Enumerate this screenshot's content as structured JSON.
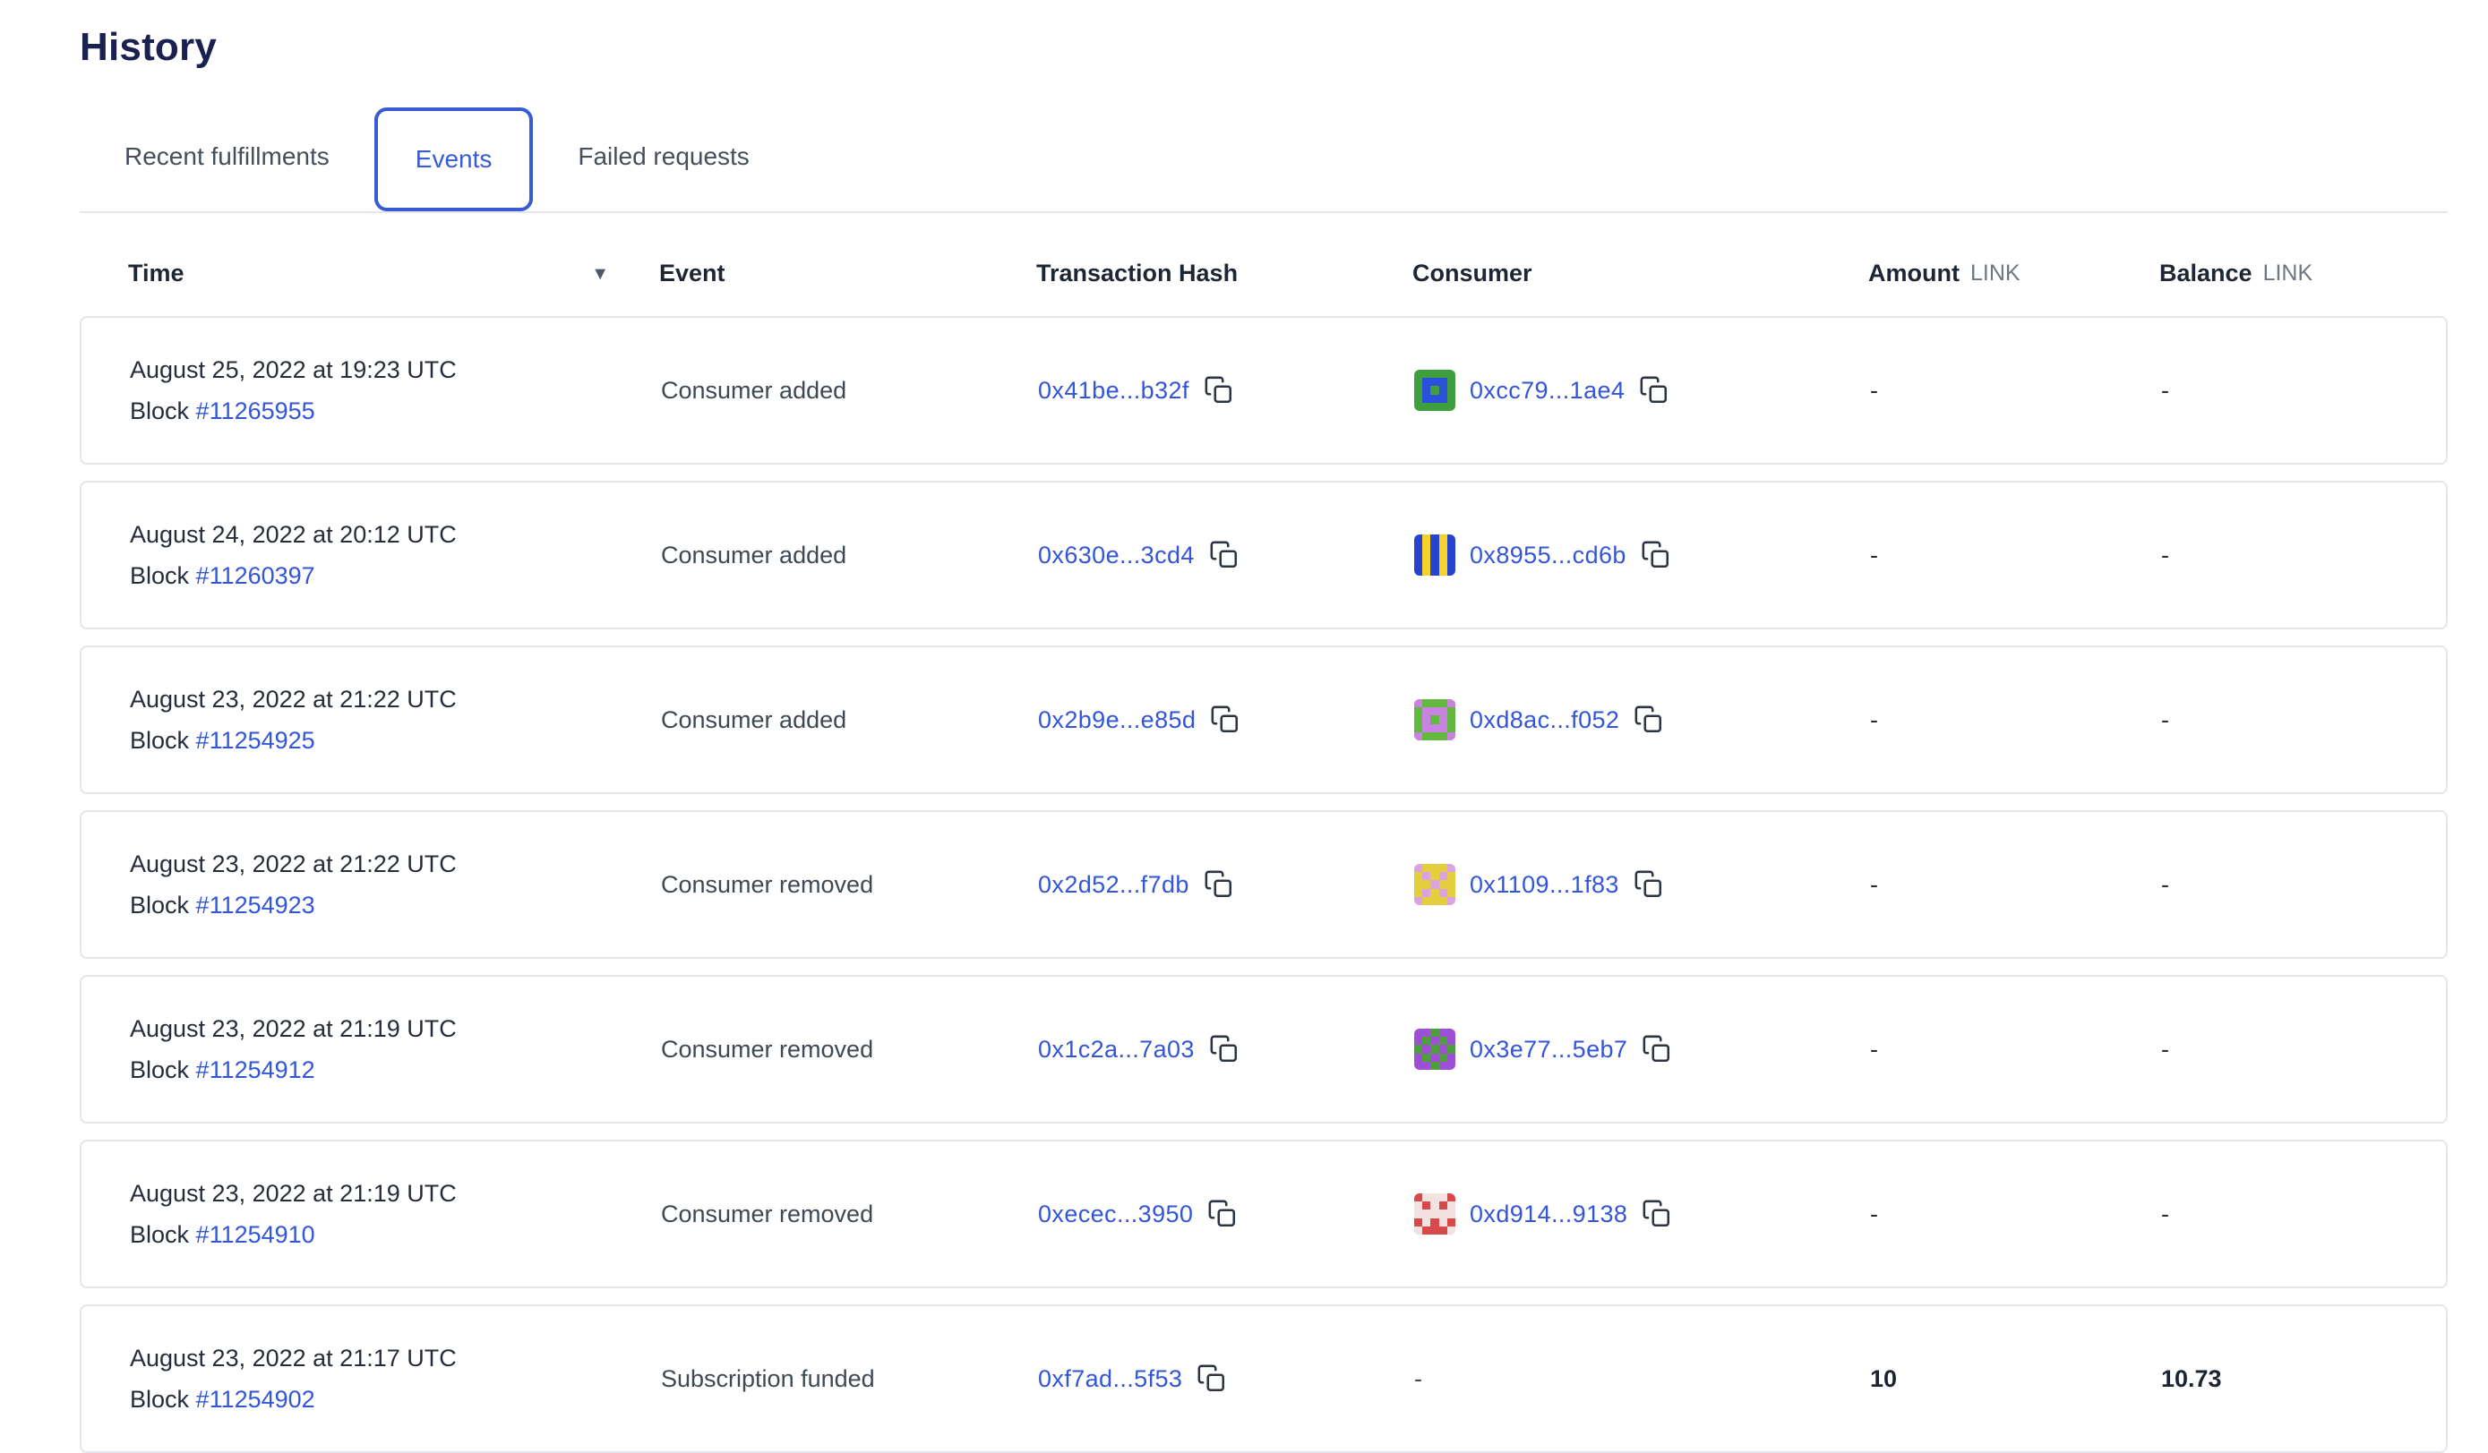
{
  "page": {
    "title": "History"
  },
  "colors": {
    "accent_blue": "#375bd2",
    "link_blue": "#3355d9",
    "heading_navy": "#1a2150",
    "row_border": "#e3e6eb"
  },
  "icons": {
    "sort_desc": "▼",
    "copy": "copy"
  },
  "tabs": [
    {
      "label": "Recent fulfillments",
      "active": false
    },
    {
      "label": "Events",
      "active": true
    },
    {
      "label": "Failed requests",
      "active": false
    }
  ],
  "table": {
    "headers": {
      "time": "Time",
      "event": "Event",
      "tx": "Transaction Hash",
      "consumer": "Consumer",
      "amount": "Amount",
      "amount_unit": "LINK",
      "balance": "Balance",
      "balance_unit": "LINK"
    },
    "rows": [
      {
        "date": "August 25, 2022 at 19:23 UTC",
        "block_label": "Block",
        "block_number": "#11265955",
        "event": "Consumer added",
        "tx_hash": "0x41be...b32f",
        "consumer": {
          "hash": "0xcc79...1ae4",
          "avatar": {
            "bg": "#3f9f3f",
            "fg": "#2b51d8",
            "pixels": [
              "00000",
              "01110",
              "01010",
              "01110",
              "00000"
            ]
          }
        },
        "amount": "-",
        "balance": "-"
      },
      {
        "date": "August 24, 2022 at 20:12 UTC",
        "block_label": "Block",
        "block_number": "#11260397",
        "event": "Consumer added",
        "tx_hash": "0x630e...3cd4",
        "consumer": {
          "hash": "0x8955...cd6b",
          "avatar": {
            "bg": "#2743d0",
            "fg": "#f5d327",
            "pixels": [
              "01010",
              "01010",
              "01010",
              "01010",
              "01010"
            ]
          }
        },
        "amount": "-",
        "balance": "-"
      },
      {
        "date": "August 23, 2022 at 21:22 UTC",
        "block_label": "Block",
        "block_number": "#11254925",
        "event": "Consumer added",
        "tx_hash": "0x2b9e...e85d",
        "consumer": {
          "hash": "0xd8ac...f052",
          "avatar": {
            "bg": "#63b93f",
            "fg": "#c883e0",
            "pixels": [
              "10001",
              "01110",
              "01010",
              "01110",
              "10001"
            ]
          }
        },
        "amount": "-",
        "balance": "-"
      },
      {
        "date": "August 23, 2022 at 21:22 UTC",
        "block_label": "Block",
        "block_number": "#11254923",
        "event": "Consumer removed",
        "tx_hash": "0x2d52...f7db",
        "consumer": {
          "hash": "0x1109...1f83",
          "avatar": {
            "bg": "#dba3e0",
            "fg": "#e3cf3e",
            "pixels": [
              "01110",
              "10101",
              "11011",
              "10101",
              "01110"
            ]
          }
        },
        "amount": "-",
        "balance": "-"
      },
      {
        "date": "August 23, 2022 at 21:19 UTC",
        "block_label": "Block",
        "block_number": "#11254912",
        "event": "Consumer removed",
        "tx_hash": "0x1c2a...7a03",
        "consumer": {
          "hash": "0x3e77...5eb7",
          "avatar": {
            "bg": "#9d4fd6",
            "fg": "#4d9f3c",
            "pixels": [
              "00100",
              "01010",
              "10101",
              "01010",
              "00100"
            ]
          }
        },
        "amount": "-",
        "balance": "-"
      },
      {
        "date": "August 23, 2022 at 21:19 UTC",
        "block_label": "Block",
        "block_number": "#11254910",
        "event": "Consumer removed",
        "tx_hash": "0xecec...3950",
        "consumer": {
          "hash": "0xd914...9138",
          "avatar": {
            "bg": "#d84a4a",
            "fg": "#f3e2e2",
            "pixels": [
              "01110",
              "10101",
              "11111",
              "01010",
              "10001"
            ]
          }
        },
        "amount": "-",
        "balance": "-"
      },
      {
        "date": "August 23, 2022 at 21:17 UTC",
        "block_label": "Block",
        "block_number": "#11254902",
        "event": "Subscription funded",
        "tx_hash": "0xf7ad...5f53",
        "consumer_text": "-",
        "amount": "10",
        "balance": "10.73"
      }
    ]
  }
}
